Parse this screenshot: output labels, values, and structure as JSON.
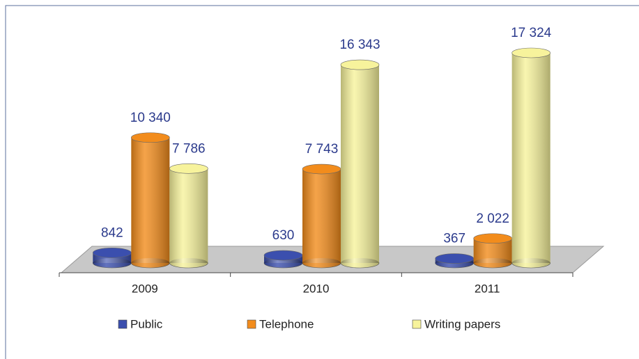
{
  "chart_data": {
    "type": "bar3d",
    "categories": [
      "2009",
      "2010",
      "2011"
    ],
    "series": [
      {
        "name": "Public",
        "color": "#3b4fae",
        "values": [
          842,
          630,
          367
        ],
        "value_labels": [
          "842",
          "630",
          "367"
        ]
      },
      {
        "name": "Telephone",
        "color": "#f28c1c",
        "values": [
          10340,
          7743,
          2022
        ],
        "value_labels": [
          "10 340",
          "7 743",
          "2 022"
        ]
      },
      {
        "name": "Writing papers",
        "color": "#f7f39c",
        "values": [
          7786,
          16343,
          17324
        ],
        "value_labels": [
          "7 786",
          "16 343",
          "17 324"
        ]
      }
    ]
  }
}
